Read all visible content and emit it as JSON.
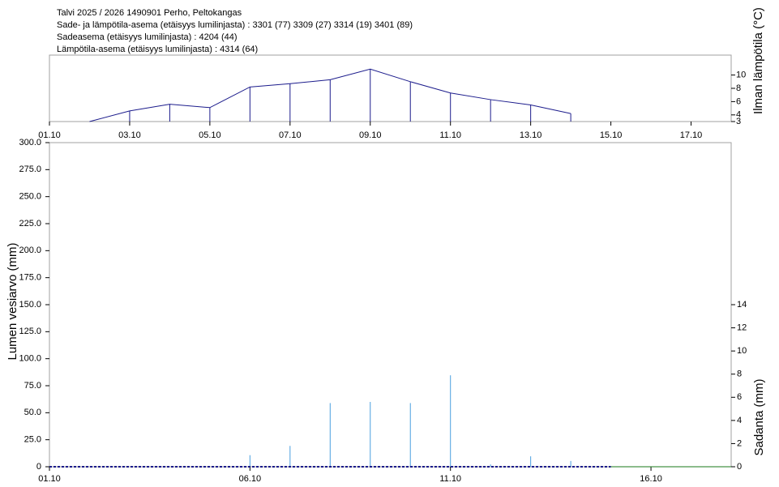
{
  "chart_data": [
    {
      "type": "line",
      "title": "Talvi 2025 / 2026 1490901 Perho, Peltokangas",
      "subtitles": [
        "Sade- ja lämpötila-asema (etäisyys lumilinjasta) :  3301 (77) 3309 (27) 3314 (19) 3401 (89)",
        "Sadeasema (etäisyys lumilinjasta) :  4204 (44)",
        "Lämpötila-asema (etäisyys lumilinjasta) :  4314 (64)"
      ],
      "y_label": "Ilman lämpötila (°C)",
      "xlim": [
        1,
        18
      ],
      "xticks": [
        {
          "value": 1,
          "label": "01.10"
        },
        {
          "value": 3,
          "label": "03.10"
        },
        {
          "value": 5,
          "label": "05.10"
        },
        {
          "value": 7,
          "label": "07.10"
        },
        {
          "value": 9,
          "label": "09.10"
        },
        {
          "value": 11,
          "label": "11.10"
        },
        {
          "value": 13,
          "label": "13.10"
        },
        {
          "value": 15,
          "label": "15.10"
        },
        {
          "value": 17,
          "label": "17.10"
        }
      ],
      "ylim": [
        3,
        13
      ],
      "yticks": [
        3,
        4,
        6,
        8,
        10
      ],
      "stems": true,
      "series": [
        {
          "type": "line",
          "color": "#1c1c8c",
          "x": [
            2,
            3,
            4,
            5,
            6,
            7,
            8,
            9,
            10,
            11,
            12,
            13,
            14
          ],
          "values": [
            3.0,
            4.6,
            5.6,
            5.1,
            8.2,
            8.7,
            9.3,
            10.9,
            9.0,
            7.3,
            6.3,
            5.5,
            4.2
          ]
        }
      ]
    },
    {
      "type": "bar",
      "y_label": "Lumen vesiarvo (mm)",
      "y2_label": "Sadanta (mm)",
      "xlim": [
        1,
        18
      ],
      "xticks": [
        {
          "value": 1,
          "label": "01.10"
        },
        {
          "value": 6,
          "label": "06.10"
        },
        {
          "value": 11,
          "label": "11.10"
        },
        {
          "value": 16,
          "label": "16.10"
        }
      ],
      "ylim": [
        0,
        300
      ],
      "yticks": [
        0,
        {
          "value": 25,
          "label": "25.0"
        },
        {
          "value": 50,
          "label": "50.0"
        },
        {
          "value": 75,
          "label": "75.0"
        },
        {
          "value": 100,
          "label": "100.0"
        },
        {
          "value": 125,
          "label": "125.0"
        },
        {
          "value": 150,
          "label": "150.0"
        },
        {
          "value": 175,
          "label": "175.0"
        },
        {
          "value": 200,
          "label": "200.0"
        },
        {
          "value": 225,
          "label": "225.0"
        },
        {
          "value": 250,
          "label": "250.0"
        },
        {
          "value": 275,
          "label": "275.0"
        },
        {
          "value": 300,
          "label": "300.0"
        }
      ],
      "y2lim": [
        0,
        28
      ],
      "y2ticks": [
        0,
        2,
        4,
        6,
        8,
        10,
        12,
        14
      ],
      "series": [
        {
          "type": "bar",
          "axis": "y2",
          "color": "#4a9fe0",
          "x": [
            6,
            7,
            8,
            9,
            10,
            11,
            12,
            13,
            14
          ],
          "values": [
            1.0,
            1.8,
            5.5,
            5.6,
            5.5,
            7.9,
            0.2,
            0.9,
            0.5
          ]
        },
        {
          "type": "line",
          "dashed": true,
          "color": "#1c1c8c",
          "x": [
            1,
            15
          ],
          "values": [
            0,
            0
          ]
        },
        {
          "type": "line",
          "color": "#1a7a1a",
          "x": [
            15,
            18
          ],
          "values": [
            0,
            0
          ]
        }
      ]
    }
  ]
}
